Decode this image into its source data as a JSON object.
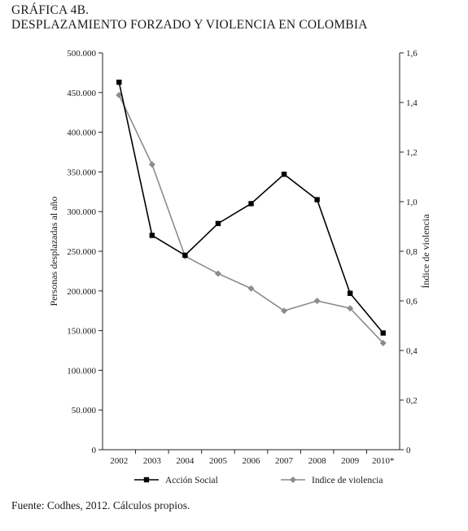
{
  "title_line1": "GRÁFICA 4B.",
  "title_line2": "DESPLAZAMIENTO FORZADO Y VIOLENCIA EN COLOMBIA",
  "source": "Fuente: Codhes, 2012. Cálculos propios.",
  "chart_data": {
    "type": "line",
    "categories": [
      "2002",
      "2003",
      "2004",
      "2005",
      "2006",
      "2007",
      "2008",
      "2009",
      "2010*"
    ],
    "ylabel": "Personas desplazadas al año",
    "y2label": "Índice de violencia",
    "ylim": [
      0,
      500000
    ],
    "y2lim": [
      0,
      1.6
    ],
    "yticks": [
      0,
      50000,
      100000,
      150000,
      200000,
      250000,
      300000,
      350000,
      400000,
      450000,
      500000
    ],
    "yticklabels": [
      "0",
      "50.000",
      "100.000",
      "150.000",
      "200.000",
      "250.000",
      "300.000",
      "350.000",
      "400.000",
      "450.000",
      "500.000"
    ],
    "y2ticks": [
      0,
      0.2,
      0.4,
      0.6,
      0.8,
      1.0,
      1.2,
      1.4,
      1.6
    ],
    "y2ticklabels": [
      "0",
      "0,2",
      "0,4",
      "0,6",
      "0,8",
      "1,0",
      "1,2",
      "1,4",
      "1,6"
    ],
    "grid": false,
    "legend_position": "bottom",
    "series": [
      {
        "name": "Acción Social",
        "axis": "left",
        "color": "#000000",
        "marker": "square",
        "values": [
          463000,
          270000,
          245000,
          285000,
          310000,
          347000,
          315000,
          197000,
          147000
        ]
      },
      {
        "name": "Indice de violencia",
        "axis": "right",
        "color": "#8c8c8c",
        "marker": "diamond",
        "values": [
          1.43,
          1.15,
          0.78,
          0.71,
          0.65,
          0.56,
          0.6,
          0.57,
          0.43
        ]
      }
    ]
  }
}
